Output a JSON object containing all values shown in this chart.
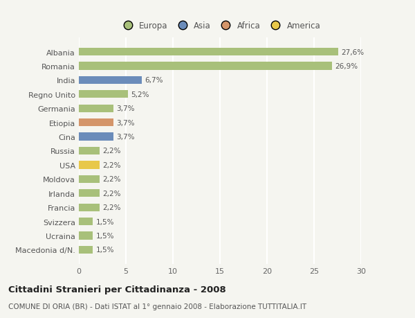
{
  "categories": [
    "Albania",
    "Romania",
    "India",
    "Regno Unito",
    "Germania",
    "Etiopia",
    "Cina",
    "Russia",
    "USA",
    "Moldova",
    "Irlanda",
    "Francia",
    "Svizzera",
    "Ucraina",
    "Macedonia d/N."
  ],
  "values": [
    27.6,
    26.9,
    6.7,
    5.2,
    3.7,
    3.7,
    3.7,
    2.2,
    2.2,
    2.2,
    2.2,
    2.2,
    1.5,
    1.5,
    1.5
  ],
  "labels": [
    "27,6%",
    "26,9%",
    "6,7%",
    "5,2%",
    "3,7%",
    "3,7%",
    "3,7%",
    "2,2%",
    "2,2%",
    "2,2%",
    "2,2%",
    "2,2%",
    "1,5%",
    "1,5%",
    "1,5%"
  ],
  "continents": [
    "Europa",
    "Europa",
    "Asia",
    "Europa",
    "Europa",
    "Africa",
    "Asia",
    "Europa",
    "America",
    "Europa",
    "Europa",
    "Europa",
    "Europa",
    "Europa",
    "Europa"
  ],
  "continent_colors": {
    "Europa": "#a8c07a",
    "Asia": "#6b8cba",
    "Africa": "#d4956a",
    "America": "#e8c84a"
  },
  "legend_labels": [
    "Europa",
    "Asia",
    "Africa",
    "America"
  ],
  "legend_colors": [
    "#a8c07a",
    "#6b8cba",
    "#d4956a",
    "#e8c84a"
  ],
  "title": "Cittadini Stranieri per Cittadinanza - 2008",
  "subtitle": "COMUNE DI ORIA (BR) - Dati ISTAT al 1° gennaio 2008 - Elaborazione TUTTITALIA.IT",
  "xlim": [
    0,
    30
  ],
  "xticks": [
    0,
    5,
    10,
    15,
    20,
    25,
    30
  ],
  "background_color": "#f5f5f0",
  "grid_color": "#ffffff",
  "bar_height": 0.55
}
